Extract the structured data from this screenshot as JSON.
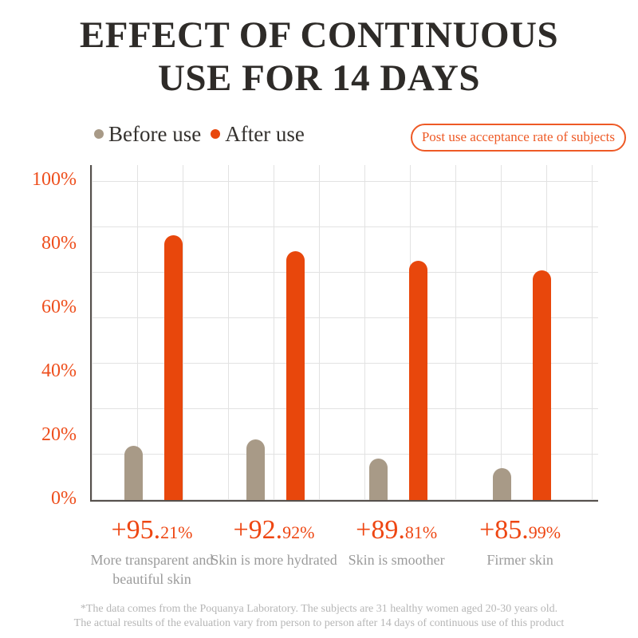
{
  "title": {
    "line1": "EFFECT OF CONTINUOUS",
    "line2": "USE FOR 14 DAYS"
  },
  "legend": {
    "items": [
      {
        "label": "Before use",
        "color": "#a89a87"
      },
      {
        "label": "After use",
        "color": "#e8470c"
      }
    ]
  },
  "badge": {
    "text": "Post use acceptance rate of subjects"
  },
  "chart_data": {
    "type": "bar",
    "title": "Effect of continuous use for 14 days",
    "categories": [
      "More transparent and beautiful skin",
      "Skin is more hydrated",
      "Skin is smoother",
      "Firmer skin"
    ],
    "series": [
      {
        "name": "Before use",
        "color": "#a89a87",
        "values": [
          17,
          19,
          13,
          10
        ]
      },
      {
        "name": "After use",
        "color": "#e8470c",
        "values": [
          83,
          78,
          75,
          72
        ]
      }
    ],
    "improvement_labels": [
      "+95.21%",
      "+92.92%",
      "+89.81%",
      "+85.99%"
    ],
    "xlabel": "",
    "ylabel": "",
    "ylim": [
      0,
      100
    ],
    "y_ticks": [
      "0%",
      "20%",
      "40%",
      "60%",
      "80%",
      "100%"
    ],
    "grid": true,
    "legend_position": "top-left"
  },
  "annotations": [
    {
      "big": "+95.",
      "small": "21%",
      "caption": "More transparent and beautiful skin"
    },
    {
      "big": "+92.",
      "small": "92%",
      "caption": "Skin is more hydrated"
    },
    {
      "big": "+89.",
      "small": "81%",
      "caption": "Skin is smoother"
    },
    {
      "big": "+85.",
      "small": "99%",
      "caption": "Firmer skin"
    }
  ],
  "footnote": {
    "line1": "*The data comes from the Poquanya Laboratory. The subjects are 31 healthy women aged 20-30 years old.",
    "line2": "The actual results of the evaluation vary from person to person after 14 days of continuous use of this product"
  },
  "colors": {
    "accent_orange": "#e8470c",
    "text_orange": "#ee4e1c",
    "bar_gray": "#a89a87",
    "title_dark": "#2e2b28",
    "caption_gray": "#9b9b9b",
    "footnote_gray": "#b6b6b6",
    "gridline": "#e2e2e2",
    "axis": "#55504c"
  }
}
